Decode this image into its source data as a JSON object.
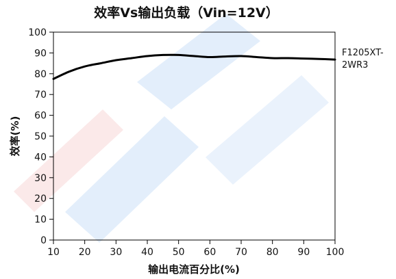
{
  "chart_data": {
    "type": "line",
    "title": "效率Vs输出负载（Vin=12V）",
    "xlabel": "输出电流百分比(%)",
    "ylabel": "效率(%)",
    "xlim": [
      10,
      100
    ],
    "ylim": [
      0,
      100
    ],
    "xticks": [
      10,
      20,
      30,
      40,
      50,
      60,
      70,
      80,
      90,
      100
    ],
    "yticks": [
      0,
      10,
      20,
      30,
      40,
      50,
      60,
      70,
      80,
      90,
      100
    ],
    "grid": false,
    "legend_position": "right",
    "series": [
      {
        "name": "F1205XT-2WR3",
        "color": "#000000",
        "x": [
          10,
          15,
          20,
          25,
          30,
          35,
          40,
          45,
          50,
          55,
          60,
          65,
          70,
          75,
          80,
          85,
          90,
          95,
          100
        ],
        "y": [
          77.5,
          81,
          83.5,
          85,
          86.5,
          87.5,
          88.5,
          89,
          89,
          88.5,
          88,
          88.3,
          88.5,
          88,
          87.5,
          87.5,
          87.3,
          87.1,
          86.8
        ]
      }
    ]
  },
  "legend": {
    "line1": "F1205XT-",
    "line2": "2WR3"
  },
  "watermark_colors": [
    "#e6f0fb",
    "#fbe6e6"
  ]
}
